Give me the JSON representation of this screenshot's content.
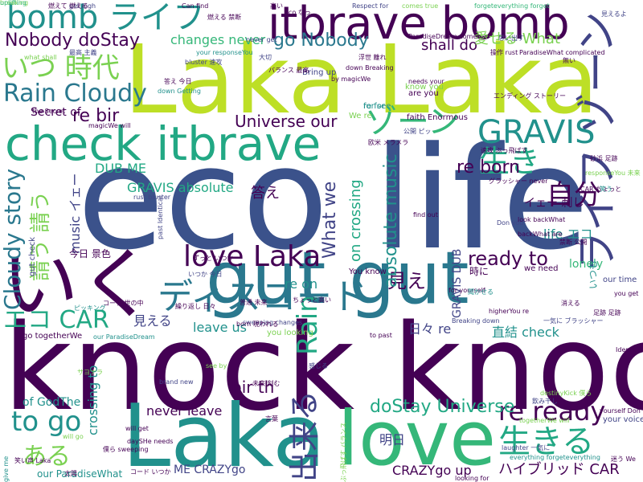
{
  "palette": {
    "dark_purple": "#440154",
    "indigo": "#3b528b",
    "slate_blue": "#414487",
    "teal": "#21918c",
    "sea_green": "#22a884",
    "green": "#35b779",
    "light_green": "#7ad151",
    "lime": "#bddf26"
  },
  "words": [
    {
      "text": "knock knock",
      "color": "#440154"
    },
    {
      "text": "eco life",
      "color": "#3b528b"
    },
    {
      "text": "Laka Laka",
      "color": "#bddf26"
    },
    {
      "text": "gut gut",
      "color": "#2a788e"
    },
    {
      "text": "check itbrave",
      "color": "#22a884"
    },
    {
      "text": "Laka",
      "color": "#21918c"
    },
    {
      "text": "love",
      "color": "#35b779"
    },
    {
      "text": "itbrave bomb",
      "color": "#440154"
    },
    {
      "text": "bomb ライフ",
      "color": "#21918c"
    },
    {
      "text": "ライフ ゾーン",
      "color": "#414487"
    },
    {
      "text": "いく",
      "color": "#440154"
    },
    {
      "text": "ディスコード",
      "color": "#2a788e"
    },
    {
      "text": "ゾーン",
      "color": "#35b779"
    },
    {
      "text": "GRAVIS",
      "color": "#21918c"
    },
    {
      "text": "Rain Cloudy",
      "color": "#2a788e"
    },
    {
      "text": "いつ 時代",
      "color": "#7ad151"
    },
    {
      "text": "Cloudy story",
      "color": "#2a788e"
    },
    {
      "text": "生き",
      "color": "#22a884"
    },
    {
      "text": "自分",
      "color": "#440154"
    },
    {
      "text": "love Laka",
      "color": "#440154"
    },
    {
      "text": "生きる",
      "color": "#22a884"
    },
    {
      "text": "to go",
      "color": "#21918c"
    },
    {
      "text": "エコ CAR",
      "color": "#22a884"
    },
    {
      "text": "re ready",
      "color": "#440154"
    },
    {
      "text": "Rain",
      "color": "#22a884"
    },
    {
      "text": "出来る",
      "color": "#414487"
    },
    {
      "text": "doStay Universe",
      "color": "#22a884"
    },
    {
      "text": "Nobody doStay",
      "color": "#440154"
    },
    {
      "text": "ready to",
      "color": "#440154"
    },
    {
      "text": "請う 請う",
      "color": "#7ad151"
    },
    {
      "text": "ある",
      "color": "#7ad151"
    },
    {
      "text": "go Nobody",
      "color": "#2a788e"
    },
    {
      "text": "Universe our",
      "color": "#440154"
    },
    {
      "text": "What we",
      "color": "#414487"
    },
    {
      "text": "re bir",
      "color": "#440154"
    },
    {
      "text": "re born",
      "color": "#440154"
    },
    {
      "text": "見え",
      "color": "#440154"
    },
    {
      "text": "absolute music",
      "color": "#21918c"
    },
    {
      "text": "on crossing",
      "color": "#22a884"
    },
    {
      "text": "changes never",
      "color": "#35b779"
    },
    {
      "text": "shall do",
      "color": "#440154"
    },
    {
      "text": "愛せる What",
      "color": "#7ad151"
    },
    {
      "text": "bir th",
      "color": "#440154"
    },
    {
      "text": "ハイブリッド CAR",
      "color": "#440154"
    },
    {
      "text": "DUB ME",
      "color": "#22a884"
    },
    {
      "text": "GRAVIS absolute",
      "color": "#22a884"
    },
    {
      "text": "答え",
      "color": "#440154"
    },
    {
      "text": "見える",
      "color": "#414487"
    },
    {
      "text": "leave us",
      "color": "#21918c"
    },
    {
      "text": "never leave",
      "color": "#440154"
    },
    {
      "text": "re on",
      "color": "#21918c"
    },
    {
      "text": "日々 re",
      "color": "#414487"
    },
    {
      "text": "直結 check",
      "color": "#21918c"
    },
    {
      "text": "life エコ",
      "color": "#21918c"
    },
    {
      "text": "Secret of",
      "color": "#440154"
    },
    {
      "text": "crossing to",
      "color": "#21918c"
    },
    {
      "text": "music イェー",
      "color": "#414487"
    },
    {
      "text": "GRAVIS DUB",
      "color": "#414487"
    },
    {
      "text": "イェー 刺し",
      "color": "#440154"
    },
    {
      "text": "明日",
      "color": "#414487"
    },
    {
      "text": "CRAZYgo up",
      "color": "#440154"
    },
    {
      "text": "ME CRAZYgo",
      "color": "#414487"
    },
    {
      "text": "of GodThe",
      "color": "#21918c"
    },
    {
      "text": "lonely",
      "color": "#35b779"
    },
    {
      "text": "いつも",
      "color": "#21918c"
    },
    {
      "text": "今日 景色",
      "color": "#440154"
    },
    {
      "text": "our ParadiseWhat",
      "color": "#21918c"
    },
    {
      "text": "our time",
      "color": "#414487"
    },
    {
      "text": "your voice",
      "color": "#414487"
    },
    {
      "text": "時に",
      "color": "#440154"
    },
    {
      "text": "go togetherWe",
      "color": "#440154"
    },
    {
      "text": "breaking",
      "color": "#7ad151"
    },
    {
      "text": "gut check",
      "color": "#414487"
    },
    {
      "text": "You know",
      "color": "#440154"
    },
    {
      "text": "we need",
      "color": "#440154"
    },
    {
      "text": "Don you",
      "color": "#414487"
    },
    {
      "text": "find out",
      "color": "#440154"
    },
    {
      "text": "know you",
      "color": "#7ad151"
    },
    {
      "text": "Bring up",
      "color": "#414487"
    },
    {
      "text": "brand new",
      "color": "#414487"
    },
    {
      "text": "you looking",
      "color": "#7ad151"
    },
    {
      "text": "re for",
      "color": "#21918c"
    },
    {
      "text": "see by",
      "color": "#7ad151"
    },
    {
      "text": "will get",
      "color": "#440154"
    },
    {
      "text": "will go",
      "color": "#7ad151"
    },
    {
      "text": "give me",
      "color": "#21918c"
    },
    {
      "text": "Can find",
      "color": "#440154"
    },
    {
      "text": "get high",
      "color": "#414487"
    },
    {
      "text": "Respect for",
      "color": "#414487"
    },
    {
      "text": "comes true",
      "color": "#7ad151"
    },
    {
      "text": "forgeteverything forget",
      "color": "#35b779"
    },
    {
      "text": "Identical to",
      "color": "#440154"
    },
    {
      "text": "looking for",
      "color": "#440154"
    },
    {
      "text": "to past",
      "color": "#440154"
    },
    {
      "text": "Breaking down",
      "color": "#414487"
    },
    {
      "text": "higherYou re",
      "color": "#440154"
    },
    {
      "text": "for yourself",
      "color": "#440154"
    },
    {
      "text": "you get",
      "color": "#440154"
    },
    {
      "text": "uplifting",
      "color": "#35b779"
    },
    {
      "text": "sweeping changes",
      "color": "#414487"
    },
    {
      "text": "rust bluster",
      "color": "#414487"
    },
    {
      "text": "bluster 速攻",
      "color": "#414487"
    },
    {
      "text": "magicWe will",
      "color": "#440154"
    },
    {
      "text": "are you",
      "color": "#440154"
    },
    {
      "text": "for see",
      "color": "#21918c"
    },
    {
      "text": "We re",
      "color": "#7ad151"
    },
    {
      "text": "faith Enormous",
      "color": "#440154"
    },
    {
      "text": "needs your",
      "color": "#440154"
    },
    {
      "text": "ParadiseDream comes",
      "color": "#440154"
    },
    {
      "text": "your responseYou",
      "color": "#21918c"
    },
    {
      "text": "never get",
      "color": "#414487"
    },
    {
      "text": "down Getting",
      "color": "#21918c"
    },
    {
      "text": "what shall",
      "color": "#7ad151"
    },
    {
      "text": "by magicWe",
      "color": "#440154"
    },
    {
      "text": "down Breaking",
      "color": "#440154"
    },
    {
      "text": "ParadiseWhat complicated",
      "color": "#440154"
    },
    {
      "text": "responseYou 未来",
      "color": "#7ad151"
    },
    {
      "text": "CAR ちょっと",
      "color": "#440154"
    },
    {
      "text": "look backWhat",
      "color": "#440154"
    },
    {
      "text": "backWhat are",
      "color": "#440154"
    },
    {
      "text": "destinyKick 僕ら",
      "color": "#7ad151"
    },
    {
      "text": "togetherWe will",
      "color": "#7ad151"
    },
    {
      "text": "yourself Don",
      "color": "#440154"
    },
    {
      "text": "everything forgeteverything",
      "color": "#21918c"
    },
    {
      "text": "laughter 一気に",
      "color": "#414487"
    },
    {
      "text": "daySHe needs",
      "color": "#440154"
    },
    {
      "text": "our ParadiseDream",
      "color": "#21918c"
    },
    {
      "text": "past Identical",
      "color": "#414487"
    },
    {
      "text": "the Secret",
      "color": "#440154"
    },
    {
      "text": "サヨナラ",
      "color": "#7ad151"
    },
    {
      "text": "コード 世の中",
      "color": "#440154"
    },
    {
      "text": "繰り返し 日々",
      "color": "#440154"
    },
    {
      "text": "born 現われる",
      "color": "#440154"
    },
    {
      "text": "ピッキング",
      "color": "#21918c"
    },
    {
      "text": "普通 未来",
      "color": "#440154"
    },
    {
      "text": "未来 刻む",
      "color": "#440154"
    },
    {
      "text": "ずっと いつか",
      "color": "#440154"
    },
    {
      "text": "いつか 今日",
      "color": "#414487"
    },
    {
      "text": "答え 今日",
      "color": "#440154"
    },
    {
      "text": "大切",
      "color": "#414487"
    },
    {
      "text": "燃える 禁断",
      "color": "#440154"
    },
    {
      "text": "最高 主義",
      "color": "#414487"
    },
    {
      "text": "燃えて 燃える",
      "color": "#440154"
    },
    {
      "text": "高い",
      "color": "#440154"
    },
    {
      "text": "eco なっ",
      "color": "#440154"
    },
    {
      "text": "バランス 最高",
      "color": "#440154"
    },
    {
      "text": "浮世 離れ",
      "color": "#440154"
    },
    {
      "text": "思い出す",
      "color": "#414487"
    },
    {
      "text": "操作 rust",
      "color": "#440154"
    },
    {
      "text": "無い",
      "color": "#440154"
    },
    {
      "text": "見えるよ",
      "color": "#414487"
    },
    {
      "text": "エンディング ストーリー",
      "color": "#440154"
    },
    {
      "text": "公開 ピッ",
      "color": "#414487"
    },
    {
      "text": "欧米 メラメラ",
      "color": "#440154"
    },
    {
      "text": "速攻 ぶっ飛ばす",
      "color": "#440154"
    },
    {
      "text": "グラッシャー never",
      "color": "#440154"
    },
    {
      "text": "砂浜 足跡",
      "color": "#440154"
    },
    {
      "text": "笑う",
      "color": "#21918c"
    },
    {
      "text": "禁断 公開",
      "color": "#440154"
    },
    {
      "text": "足跡 足跡",
      "color": "#440154"
    },
    {
      "text": "笑い声 Laka",
      "color": "#440154"
    },
    {
      "text": "太陽",
      "color": "#440154"
    },
    {
      "text": "コード いつか",
      "color": "#440154"
    },
    {
      "text": "僕ら sweeping",
      "color": "#440154"
    },
    {
      "text": "迷う We",
      "color": "#440154"
    },
    {
      "text": "消える",
      "color": "#440154"
    },
    {
      "text": "聞かせる",
      "color": "#21918c"
    },
    {
      "text": "一気に ブラッシャー",
      "color": "#414487"
    },
    {
      "text": "飲み干し",
      "color": "#414487"
    },
    {
      "text": "感じる",
      "color": "#414487"
    },
    {
      "text": "言葉",
      "color": "#440154"
    },
    {
      "text": "ちょっと高い",
      "color": "#440154"
    },
    {
      "text": "ぶっ飛ばす バランス",
      "color": "#7ad151"
    }
  ]
}
